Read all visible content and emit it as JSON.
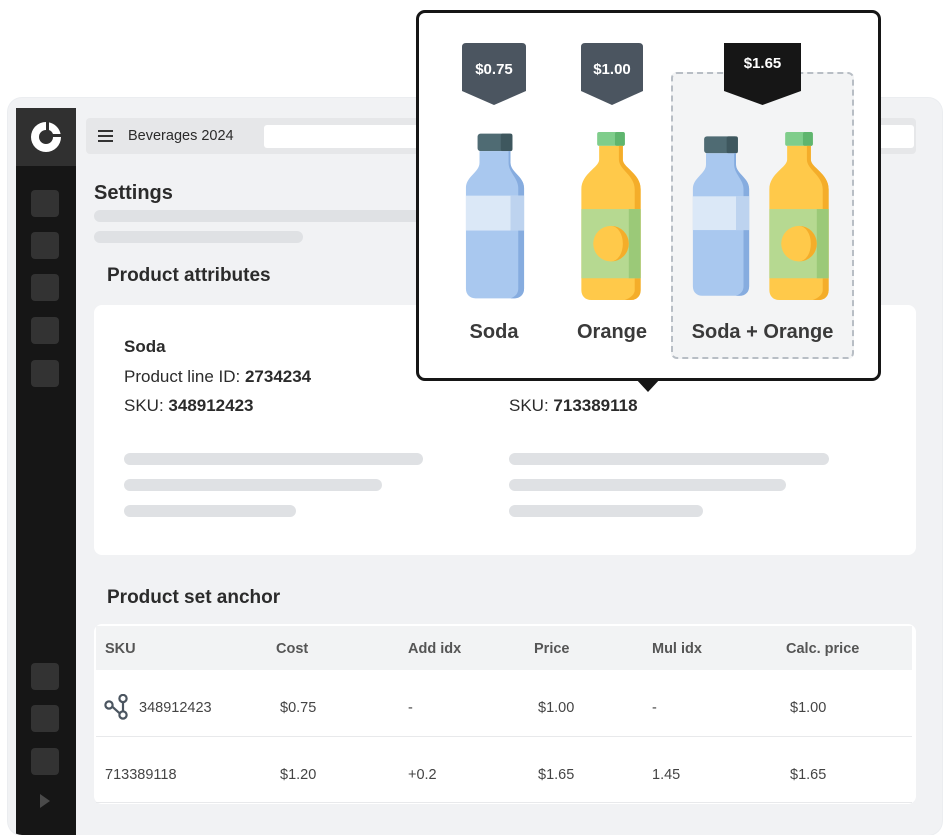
{
  "header": {
    "project_title": "Beverages 2024"
  },
  "page": {
    "title": "Settings",
    "attributes_title": "Product attributes",
    "anchor_title": "Product set anchor"
  },
  "attributes": {
    "product_line_label": "Product line ID: ",
    "sku_label": "SKU: ",
    "left": {
      "name": "Soda",
      "product_line_id": "2734234",
      "sku": "348912423"
    },
    "right": {
      "sku": "713389118"
    }
  },
  "table": {
    "headers": [
      "SKU",
      "Cost",
      "Add idx",
      "Price",
      "Mul idx",
      "Calc. price"
    ],
    "rows": [
      [
        "348912423",
        "$0.75",
        "-",
        "$1.00",
        "-",
        "$1.00"
      ],
      [
        "713389118",
        "$1.20",
        "+0.2",
        "$1.65",
        "1.45",
        "$1.65"
      ]
    ]
  },
  "popup": {
    "items": [
      {
        "price": "$0.75",
        "label": "Soda"
      },
      {
        "price": "$1.00",
        "label": "Orange"
      },
      {
        "price": "$1.65",
        "label": "Soda + Orange"
      }
    ]
  },
  "icons": {
    "logo": "brand-logo-icon",
    "menu": "hamburger-menu-icon",
    "anchor": "anchor-link-icon",
    "collapse": "sidebar-expand-icon"
  },
  "colors": {
    "sidebar": "#161616",
    "tag_dark": "#161616",
    "tag_slate": "#4b5560",
    "soda_blue": "#a9c8ef",
    "orange_yellow": "#ffc94a",
    "label_green": "#b6d991"
  }
}
